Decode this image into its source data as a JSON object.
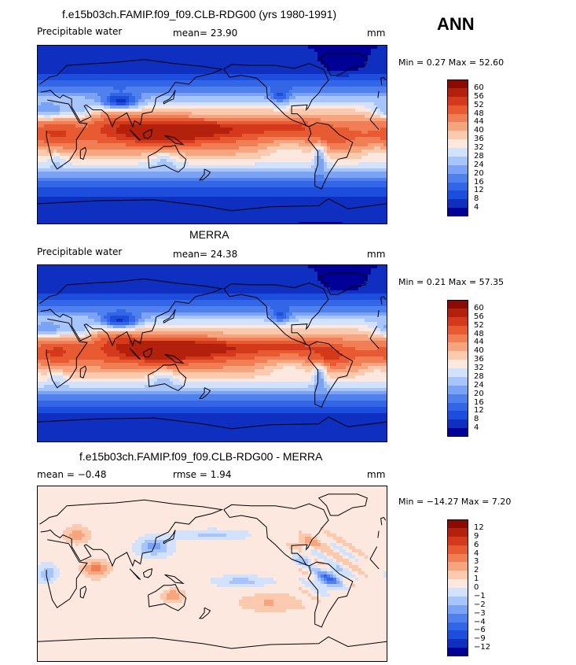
{
  "season": "ANN",
  "colors": {
    "levels_abs": [
      "#000096",
      "#0e2fc0",
      "#1c4ddc",
      "#3366e6",
      "#4f80ee",
      "#7aa3f5",
      "#a7c5fa",
      "#d2e2fc",
      "#fde8df",
      "#fbc9ad",
      "#f7a57f",
      "#f27e55",
      "#e85a32",
      "#d4391b",
      "#b3200c",
      "#8c0a04"
    ],
    "levels_diff": [
      "#000096",
      "#0e2fc0",
      "#1c4ddc",
      "#3366e6",
      "#4f80ee",
      "#7aa3f5",
      "#a7c5fa",
      "#d2e2fc",
      "#fde8df",
      "#fbc9ad",
      "#f7a57f",
      "#f27e55",
      "#e85a32",
      "#d4391b",
      "#b3200c",
      "#8c0a04"
    ]
  },
  "panels": [
    {
      "title": "f.e15b03ch.FAMIP.f09_f09.CLB-RDG00 (yrs 1980-1991)",
      "left_text": "Precipitable water",
      "center_text": "mean=  23.90",
      "units": "mm",
      "minmax": "Min =    0.27 Max =   52.60",
      "colorbar_labels": [
        "60",
        "56",
        "52",
        "48",
        "44",
        "40",
        "36",
        "32",
        "28",
        "24",
        "20",
        "16",
        "12",
        "8",
        "4"
      ]
    },
    {
      "title": "MERRA",
      "left_text": "Precipitable water",
      "center_text": "mean=  24.38",
      "units": "mm",
      "minmax": "Min =    0.21 Max =   57.35",
      "colorbar_labels": [
        "60",
        "56",
        "52",
        "48",
        "44",
        "40",
        "36",
        "32",
        "28",
        "24",
        "20",
        "16",
        "12",
        "8",
        "4"
      ]
    },
    {
      "title": "f.e15b03ch.FAMIP.f09_f09.CLB-RDG00 - MERRA",
      "left_text": "mean =   −0.48",
      "center_text": "rmse =    1.94",
      "units": "mm",
      "minmax": "Min = −14.27 Max =    7.20",
      "colorbar_labels": [
        "12",
        "9",
        "6",
        "4",
        "3",
        "2",
        "1",
        "0",
        "−1",
        "−2",
        "−3",
        "−4",
        "−6",
        "−9",
        "−12"
      ]
    }
  ],
  "chart_data": [
    {
      "type": "heatmap",
      "title": "f.e15b03ch.FAMIP.f09_f09.CLB-RDG00 (yrs 1980-1991)",
      "variable": "Precipitable water",
      "units": "mm",
      "mean": 23.9,
      "min": 0.27,
      "max": 52.6,
      "levels": [
        4,
        8,
        12,
        16,
        20,
        24,
        28,
        32,
        36,
        40,
        44,
        48,
        52,
        56,
        60
      ],
      "projection": "global map, Pacific-centered"
    },
    {
      "type": "heatmap",
      "title": "MERRA",
      "variable": "Precipitable water",
      "units": "mm",
      "mean": 24.38,
      "min": 0.21,
      "max": 57.35,
      "levels": [
        4,
        8,
        12,
        16,
        20,
        24,
        28,
        32,
        36,
        40,
        44,
        48,
        52,
        56,
        60
      ],
      "projection": "global map, Pacific-centered"
    },
    {
      "type": "heatmap",
      "title": "f.e15b03ch.FAMIP.f09_f09.CLB-RDG00 - MERRA",
      "units": "mm",
      "mean": -0.48,
      "rmse": 1.94,
      "min": -14.27,
      "max": 7.2,
      "levels": [
        -12,
        -9,
        -6,
        -4,
        -3,
        -2,
        -1,
        0,
        1,
        2,
        3,
        4,
        6,
        9,
        12
      ],
      "projection": "global map, Pacific-centered"
    }
  ]
}
